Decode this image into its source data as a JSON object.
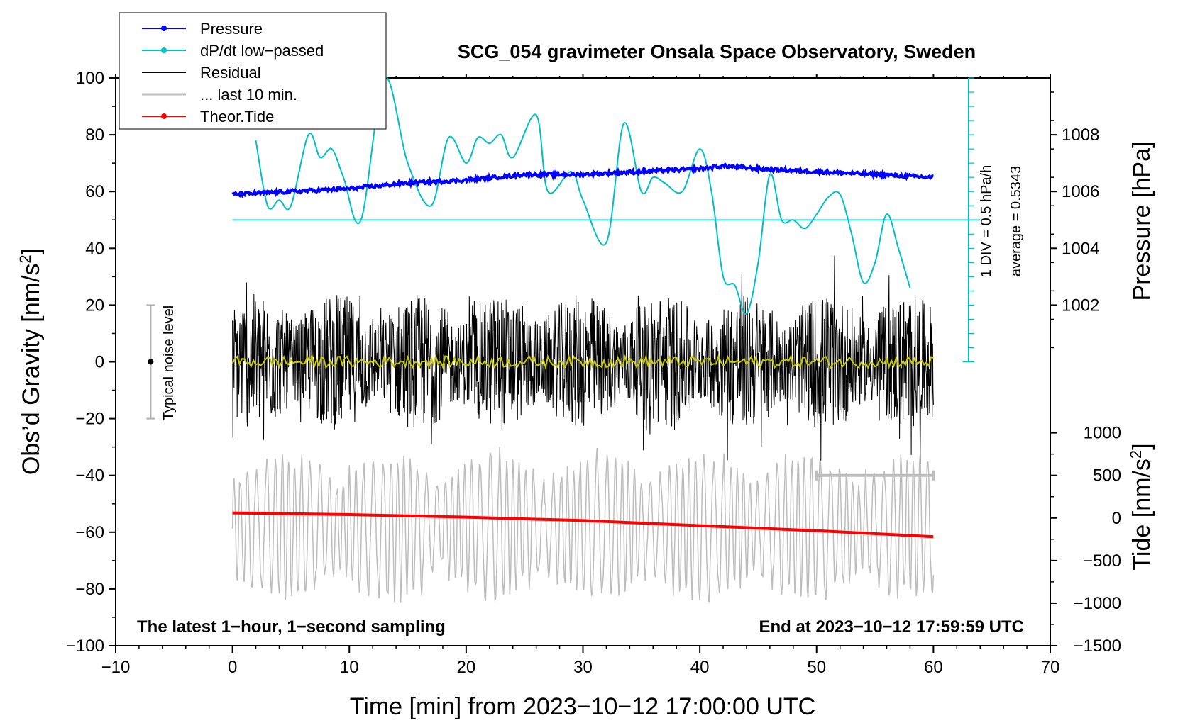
{
  "chart_data": {
    "type": "line",
    "title": "SCG_054 gravimeter Onsala Space Observatory, Sweden",
    "xlabel": "Time [min] from 2023−10−12 17:00:00 UTC",
    "ylabel_left": "Obs’d Gravity [nm/s",
    "ylabel_left_sup": "2",
    "ylabel_left_close": "]",
    "ylabel_right_top": "Pressure [hPa]",
    "ylabel_right_bottom": "Tide [nm/s",
    "ylabel_right_bottom_sup": "2",
    "ylabel_right_bottom_close": "]",
    "xlim": [
      -10,
      70
    ],
    "ylim": [
      -100,
      100
    ],
    "pressure_axis_range": [
      1000,
      1010
    ],
    "tide_axis_range": [
      -1500,
      1500
    ],
    "x_ticks": [
      -10,
      0,
      10,
      20,
      30,
      40,
      50,
      60,
      70
    ],
    "x_tick_labels": [
      "−10",
      "0",
      "10",
      "20",
      "30",
      "40",
      "50",
      "60",
      "70"
    ],
    "y_ticks": [
      -100,
      -80,
      -60,
      -40,
      -20,
      0,
      20,
      40,
      60,
      80,
      100
    ],
    "y_tick_labels": [
      "−100",
      "−80",
      "−60",
      "−40",
      "−20",
      "0",
      "20",
      "40",
      "60",
      "80",
      "100"
    ],
    "pressure_ticks": [
      1002,
      1004,
      1006,
      1008
    ],
    "pressure_tick_labels": [
      "1002",
      "1004",
      "1006",
      "1008"
    ],
    "tide_ticks": [
      -1500,
      -1000,
      -500,
      0,
      500,
      1000
    ],
    "tide_tick_labels": [
      "−1500",
      "−1000",
      "−500",
      "0",
      "500",
      "1000"
    ],
    "legend": [
      {
        "label": "Pressure",
        "color": "#0000ff",
        "marker": true
      },
      {
        "label": "dP/dt low−passed",
        "color": "#00c0c0",
        "marker": true
      },
      {
        "label": "Residual",
        "color": "#000000",
        "marker": false
      },
      {
        "label": "... last 10 min.",
        "color": "#bdbdbd",
        "marker": false
      },
      {
        "label": "Theor.Tide",
        "color": "#ff0000",
        "marker": true
      }
    ],
    "annotations": {
      "bottom_left": "The latest 1−hour, 1−second sampling",
      "bottom_right": "End at 2023−10−12 17:59:59 UTC",
      "noise_label": "Typical noise level",
      "div_label": "1 DIV = 0.5 hPa/h",
      "avg_label": "average = 0.5343"
    },
    "noise_bar": {
      "x": -7,
      "center": 0,
      "half_range": 20
    },
    "scale_bar": {
      "x_start": 50,
      "x_end": 60,
      "tide_value": 500
    },
    "dpdt_scale": {
      "x": 63,
      "baseline_y": 50,
      "div_step_y": 5,
      "top_y": 100,
      "bottom_y": 0
    },
    "series": [
      {
        "name": "Pressure",
        "color": "#0000ff",
        "axis": "pressure",
        "x": [
          0,
          5,
          10,
          15,
          20,
          25,
          30,
          35,
          40,
          42,
          45,
          50,
          55,
          60
        ],
        "values": [
          1005.9,
          1006.0,
          1006.1,
          1006.3,
          1006.4,
          1006.6,
          1006.6,
          1006.7,
          1006.8,
          1006.9,
          1006.8,
          1006.7,
          1006.6,
          1006.5
        ]
      },
      {
        "name": "dP/dt low-passed",
        "color": "#00c0c0",
        "axis": "gravity",
        "x": [
          2,
          3,
          4,
          5,
          6.5,
          7.5,
          8.5,
          9.5,
          11,
          13,
          15,
          17,
          18.5,
          20,
          21,
          22,
          23,
          24,
          26,
          27,
          29,
          30,
          32,
          33.5,
          35,
          36,
          37,
          38.5,
          40,
          41,
          42,
          43,
          44,
          45,
          46,
          47,
          48,
          49,
          50,
          51,
          52,
          53,
          54,
          55,
          56,
          57,
          58
        ],
        "values": [
          78,
          55,
          57,
          55,
          80,
          72,
          75,
          65,
          50,
          100,
          70,
          55,
          79,
          70,
          79,
          77,
          80,
          72,
          87,
          60,
          67,
          57,
          42,
          84,
          60,
          65,
          63,
          60,
          75,
          60,
          30,
          27,
          17,
          35,
          66,
          50,
          50,
          47,
          52,
          58,
          59,
          45,
          28,
          35,
          52,
          40,
          26
        ]
      },
      {
        "name": "Residual",
        "color": "#000000",
        "axis": "gravity",
        "t_start": 0,
        "t_end": 60,
        "sample_count": 1800,
        "amplitude": 24,
        "mean": 0
      },
      {
        "name": "Residual smoothed",
        "color": "#c8c800",
        "axis": "gravity",
        "t_start": 0,
        "t_end": 60,
        "amplitude": 2,
        "mean": 0
      },
      {
        "name": "... last 10 min.",
        "color": "#bdbdbd",
        "axis": "gravity",
        "t_start": 0,
        "t_end": 60,
        "center": -58,
        "amplitude": 22
      },
      {
        "name": "Theor.Tide",
        "color": "#ff0000",
        "axis": "tide",
        "x": [
          0,
          10,
          20,
          30,
          40,
          50,
          60
        ],
        "values": [
          60,
          40,
          10,
          -30,
          -90,
          -150,
          -220
        ]
      }
    ]
  }
}
